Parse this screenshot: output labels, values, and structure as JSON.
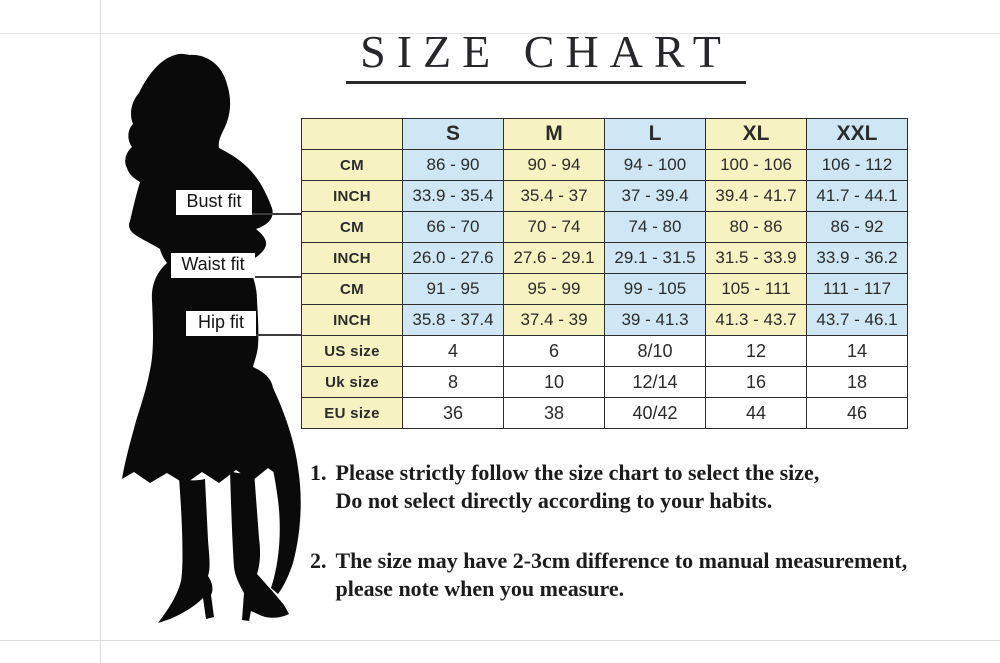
{
  "title": "SIZE CHART",
  "figure": {
    "name": "woman-silhouette"
  },
  "fit_labels": [
    {
      "label": "Bust fit"
    },
    {
      "label": "Waist fit"
    },
    {
      "label": "Hip fit"
    }
  ],
  "chart_data": {
    "type": "table",
    "title": "SIZE CHART",
    "columns": [
      "",
      "S",
      "M",
      "L",
      "XL",
      "XXL"
    ],
    "rows": [
      {
        "section": "Bust fit",
        "label": "CM",
        "kind": "range",
        "values": [
          "86 - 90",
          "90 - 94",
          "94 - 100",
          "100 - 106",
          "106 - 112"
        ]
      },
      {
        "section": "Bust fit",
        "label": "INCH",
        "kind": "range",
        "values": [
          "33.9 - 35.4",
          "35.4 - 37",
          "37 - 39.4",
          "39.4 - 41.7",
          "41.7 - 44.1"
        ]
      },
      {
        "section": "Waist fit",
        "label": "CM",
        "kind": "range",
        "values": [
          "66 - 70",
          "70 - 74",
          "74 - 80",
          "80 - 86",
          "86 - 92"
        ]
      },
      {
        "section": "Waist fit",
        "label": "INCH",
        "kind": "range",
        "values": [
          "26.0 - 27.6",
          "27.6 - 29.1",
          "29.1 - 31.5",
          "31.5 - 33.9",
          "33.9 - 36.2"
        ]
      },
      {
        "section": "Hip fit",
        "label": "CM",
        "kind": "range",
        "values": [
          "91 - 95",
          "95 - 99",
          "99 - 105",
          "105 - 111",
          "111 - 117"
        ]
      },
      {
        "section": "Hip fit",
        "label": "INCH",
        "kind": "range",
        "values": [
          "35.8 - 37.4",
          "37.4 - 39",
          "39 - 41.3",
          "41.3 - 43.7",
          "43.7 - 46.1"
        ]
      },
      {
        "section": "sizes",
        "label": "US size",
        "kind": "size",
        "values": [
          "4",
          "6",
          "8/10",
          "12",
          "14"
        ]
      },
      {
        "section": "sizes",
        "label": "Uk size",
        "kind": "size",
        "values": [
          "8",
          "10",
          "12/14",
          "16",
          "18"
        ]
      },
      {
        "section": "sizes",
        "label": "EU size",
        "kind": "size",
        "values": [
          "36",
          "38",
          "40/42",
          "44",
          "46"
        ]
      }
    ]
  },
  "notes": [
    {
      "number": "1.",
      "lines": [
        "Please strictly follow the size chart to select the size,",
        "Do not select directly according to your habits."
      ]
    },
    {
      "number": "2.",
      "lines": [
        "The size may have 2-3cm difference  to manual measurement,",
        "please note when you measure."
      ]
    }
  ],
  "colors": {
    "cell_yellow": "#f6f2c1",
    "cell_blue": "#cfe7f4",
    "cell_white": "#ffffff",
    "border": "#2d2d2d"
  }
}
